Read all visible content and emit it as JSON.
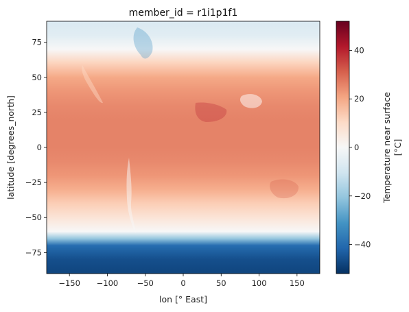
{
  "chart_data": {
    "type": "heatmap",
    "title": "member_id = r1i1p1f1",
    "xlabel": "lon [$^\\circ$ East]",
    "ylabel": "latitude [degrees_north]",
    "xlim": [
      -180,
      180
    ],
    "ylim": [
      -90,
      90
    ],
    "xticks": [
      -150,
      -100,
      -50,
      0,
      50,
      100,
      150
    ],
    "yticks": [
      -75,
      -50,
      -25,
      0,
      25,
      50,
      75
    ],
    "colorbar": {
      "label_line1": "Temperature near surface",
      "label_line2": "[$^\\circ$C]",
      "cmap": "RdBu_r",
      "range": [
        -52,
        52
      ],
      "ticks": [
        -40,
        -20,
        0,
        20,
        40
      ]
    },
    "zonal_profile": {
      "lat": [
        -90,
        -80,
        -70,
        -65,
        -60,
        -50,
        -40,
        -30,
        -20,
        -10,
        0,
        10,
        20,
        30,
        40,
        50,
        60,
        70,
        80,
        90
      ],
      "temperature": [
        -48,
        -46,
        -40,
        -20,
        0,
        7,
        13,
        19,
        23,
        25,
        26,
        26,
        26,
        25,
        23,
        20,
        12,
        0,
        -6,
        -8
      ]
    }
  }
}
